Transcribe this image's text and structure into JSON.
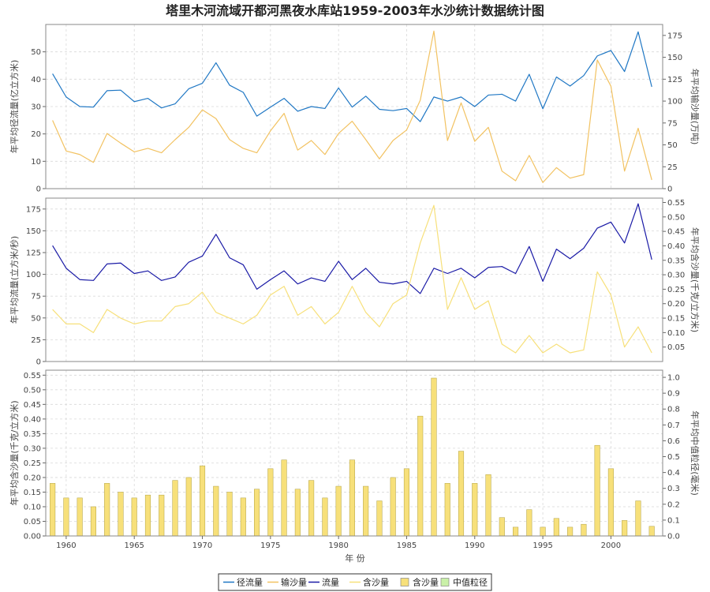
{
  "chart_data": {
    "title": "塔里木河流域开都河黑夜水库站1959-2003年水沙统计数据统计图",
    "xlabel": "年 份",
    "x_range": [
      1958.5,
      2003.8
    ],
    "x_ticks": [
      1960,
      1965,
      1970,
      1975,
      1980,
      1985,
      1990,
      1995,
      2000
    ],
    "years": [
      1959,
      1960,
      1961,
      1962,
      1963,
      1964,
      1965,
      1966,
      1967,
      1968,
      1969,
      1970,
      1971,
      1972,
      1973,
      1974,
      1975,
      1976,
      1977,
      1978,
      1979,
      1980,
      1981,
      1982,
      1983,
      1984,
      1985,
      1986,
      1987,
      1988,
      1989,
      1990,
      1991,
      1992,
      1993,
      1994,
      1995,
      1996,
      1997,
      1998,
      1999,
      2000,
      2001,
      2002,
      2003
    ],
    "grid": true,
    "panels": [
      {
        "type": "line",
        "ylabel_left": "年平均径流量(亿立方米)",
        "ylabel_right": "年平均输沙量(万吨)",
        "ylim_left": [
          0,
          60
        ],
        "ylim_right": [
          0,
          187.5
        ],
        "yticks_left": [
          0,
          10,
          20,
          30,
          40,
          50
        ],
        "yticks_right": [
          0,
          25,
          50,
          75,
          100,
          125,
          150,
          175
        ],
        "series": [
          {
            "name": "径流量",
            "axis": "left",
            "color": "#1f77c4",
            "values": [
              42,
              33.5,
              30,
              29.8,
              35.8,
              36,
              31.8,
              33,
              29.5,
              31,
              36.5,
              38.5,
              46,
              37.8,
              35.2,
              26.5,
              29.8,
              33,
              28.3,
              30,
              29.3,
              36.8,
              29.8,
              33.8,
              29,
              28.5,
              29.3,
              24.5,
              33.5,
              32,
              33.5,
              30,
              34.2,
              34.5,
              32,
              41.8,
              29.2,
              40.8,
              37.5,
              41.3,
              48.5,
              50.5,
              42.8,
              57.3,
              37.2
            ]
          },
          {
            "name": "输沙量",
            "axis": "right",
            "color": "#f2c261",
            "values": [
              78,
              43,
              39,
              30,
              63,
              52,
              42,
              46,
              41,
              56,
              70,
              90,
              80,
              56,
              46,
              41,
              66,
              86,
              44,
              55,
              39,
              63,
              77,
              56,
              34,
              55,
              67,
              101,
              180,
              55,
              98,
              54,
              70,
              20,
              9,
              38,
              7,
              24,
              12,
              16,
              147,
              117,
              20,
              69,
              10
            ]
          }
        ]
      },
      {
        "type": "line",
        "ylabel_left": "年平均流量(立方米/秒)",
        "ylabel_right": "年平均含沙量(千克/立方米)",
        "ylim_left": [
          0,
          187.5
        ],
        "ylim_right": [
          0,
          0.565
        ],
        "yticks_left": [
          0,
          25,
          50,
          75,
          100,
          125,
          150,
          175
        ],
        "yticks_right": [
          0.05,
          0.1,
          0.15,
          0.2,
          0.25,
          0.3,
          0.35,
          0.4,
          0.45,
          0.5,
          0.55
        ],
        "series": [
          {
            "name": "流量",
            "axis": "left",
            "color": "#1a1aa6",
            "values": [
              133,
              107,
              94,
              93,
              112,
              113,
              101,
              104,
              93,
              97,
              114,
              121,
              146,
              119,
              111,
              83,
              94,
              104,
              89,
              96,
              92,
              115,
              94,
              107,
              91,
              89,
              92,
              78,
              107,
              101,
              107,
              96,
              108,
              109,
              101,
              132,
              92,
              129,
              118,
              130,
              153,
              160,
              136,
              181,
              117
            ]
          },
          {
            "name": "含沙量",
            "axis": "right",
            "color": "#f7e07a",
            "values": [
              0.18,
              0.13,
              0.13,
              0.1,
              0.18,
              0.15,
              0.13,
              0.14,
              0.14,
              0.19,
              0.2,
              0.24,
              0.17,
              0.15,
              0.13,
              0.16,
              0.23,
              0.26,
              0.16,
              0.19,
              0.13,
              0.17,
              0.26,
              0.17,
              0.12,
              0.2,
              0.23,
              0.41,
              0.54,
              0.18,
              0.29,
              0.18,
              0.21,
              0.06,
              0.03,
              0.09,
              0.03,
              0.06,
              0.03,
              0.04,
              0.31,
              0.23,
              0.05,
              0.12,
              0.03
            ]
          }
        ]
      },
      {
        "type": "bar",
        "ylabel_left": "年平均含沙量(千克/立方米)",
        "ylabel_right": "年平均中值粒径(毫米)",
        "ylim_left": [
          0,
          0.567
        ],
        "ylim_right": [
          0,
          1.045
        ],
        "yticks_left": [
          0.0,
          0.05,
          0.1,
          0.15,
          0.2,
          0.25,
          0.3,
          0.35,
          0.4,
          0.45,
          0.5,
          0.55
        ],
        "yticks_right": [
          0.0,
          0.1,
          0.2,
          0.3,
          0.4,
          0.5,
          0.6,
          0.7,
          0.8,
          0.9,
          1.0
        ],
        "series": [
          {
            "name": "含沙量",
            "axis": "left",
            "color": "#f7e07a",
            "values": [
              0.18,
              0.13,
              0.13,
              0.1,
              0.18,
              0.15,
              0.13,
              0.14,
              0.14,
              0.19,
              0.2,
              0.24,
              0.17,
              0.15,
              0.13,
              0.16,
              0.23,
              0.26,
              0.16,
              0.19,
              0.13,
              0.17,
              0.26,
              0.17,
              0.12,
              0.2,
              0.23,
              0.41,
              0.54,
              0.18,
              0.29,
              0.18,
              0.21,
              0.063,
              0.03,
              0.09,
              0.03,
              0.06,
              0.03,
              0.04,
              0.31,
              0.23,
              0.053,
              0.12,
              0.033
            ]
          },
          {
            "name": "中值粒径",
            "axis": "right",
            "color": "#c9f0a8",
            "values": []
          }
        ]
      }
    ],
    "legend": [
      {
        "label": "径流量",
        "kind": "line",
        "color": "#1f77c4"
      },
      {
        "label": "输沙量",
        "kind": "line",
        "color": "#f2c261"
      },
      {
        "label": "流量",
        "kind": "line",
        "color": "#1a1aa6"
      },
      {
        "label": "含沙量",
        "kind": "line",
        "color": "#f7e07a"
      },
      {
        "label": "含沙量",
        "kind": "box",
        "color": "#f7e07a"
      },
      {
        "label": "中值粒径",
        "kind": "box",
        "color": "#c9f0a8"
      }
    ],
    "legend_position": "bottom-center"
  }
}
